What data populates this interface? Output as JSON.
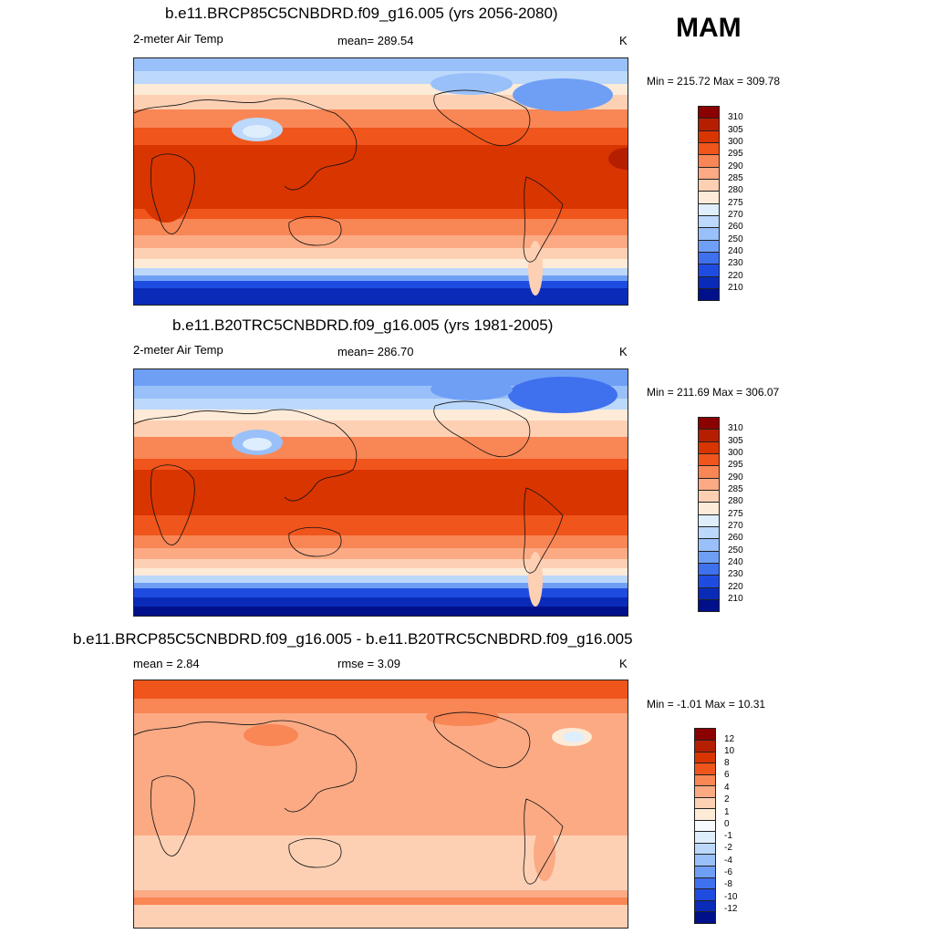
{
  "season": "MAM",
  "panels": [
    {
      "title": "b.e11.BRCP85C5CNBDRD.f09_g16.005 (yrs 2056-2080)",
      "left_label": "2-meter Air Temp",
      "center_label": "mean= 289.54",
      "right_label": "K",
      "minmax": "Min = 215.72 Max = 309.78",
      "colorbar_labels": [
        "310",
        "305",
        "300",
        "295",
        "290",
        "285",
        "280",
        "275",
        "270",
        "260",
        "250",
        "240",
        "230",
        "220",
        "210"
      ]
    },
    {
      "title": "b.e11.B20TRC5CNBDRD.f09_g16.005 (yrs 1981-2005)",
      "left_label": "2-meter Air Temp",
      "center_label": "mean= 286.70",
      "right_label": "K",
      "minmax": "Min = 211.69 Max = 306.07",
      "colorbar_labels": [
        "310",
        "305",
        "300",
        "295",
        "290",
        "285",
        "280",
        "275",
        "270",
        "260",
        "250",
        "240",
        "230",
        "220",
        "210"
      ]
    },
    {
      "title": "b.e11.BRCP85C5CNBDRD.f09_g16.005 - b.e11.B20TRC5CNBDRD.f09_g16.005",
      "left_label": "mean =   2.84",
      "center_label": "rmse =   3.09",
      "right_label": "K",
      "minmax": "Min =  -1.01 Max =  10.31",
      "colorbar_labels": [
        "12",
        "10",
        "8",
        "6",
        "4",
        "2",
        "1",
        "0",
        "-1",
        "-2",
        "-4",
        "-6",
        "-8",
        "-10",
        "-12"
      ]
    }
  ],
  "colors": {
    "abs_scale": [
      "#8b0000",
      "#b51f00",
      "#d93500",
      "#f0551c",
      "#f98655",
      "#fbaa84",
      "#fdd0b4",
      "#fdebd8",
      "#dfeefc",
      "#bcd8fb",
      "#99c0f9",
      "#6f9ff5",
      "#3f70ee",
      "#1f4ce0",
      "#0a2bb8",
      "#00108a"
    ],
    "diff_scale": [
      "#8b0000",
      "#b51f00",
      "#d93500",
      "#f0551c",
      "#f98655",
      "#fbaa84",
      "#fdd0b4",
      "#fdebd8",
      "#f7fbff",
      "#dfeefc",
      "#bcd8fb",
      "#99c0f9",
      "#6f9ff5",
      "#3f70ee",
      "#1f4ce0",
      "#0a2bb8",
      "#00108a"
    ]
  }
}
